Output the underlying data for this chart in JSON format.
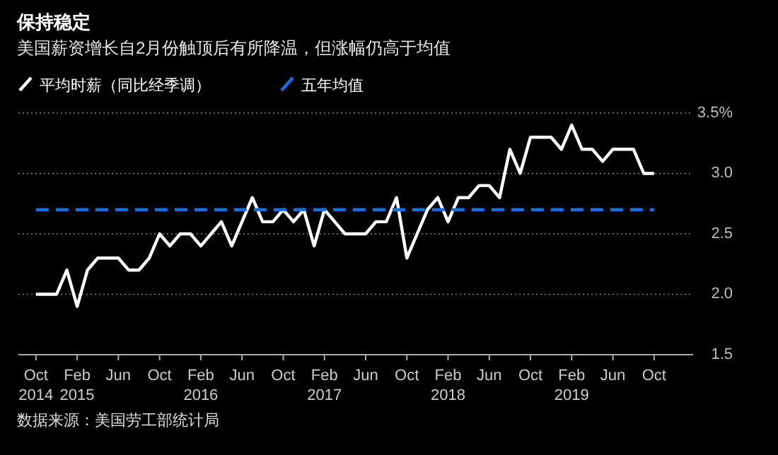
{
  "chart_data": {
    "type": "line",
    "title": "保持稳定",
    "subtitle": "美国薪资增长自2月份触顶后有所降温，但涨幅仍高于均值",
    "annotations": [
      "数据来源：美国劳工部统计局"
    ],
    "x": [
      "2014-10",
      "2014-11",
      "2014-12",
      "2015-01",
      "2015-02",
      "2015-03",
      "2015-04",
      "2015-05",
      "2015-06",
      "2015-07",
      "2015-08",
      "2015-09",
      "2015-10",
      "2015-11",
      "2015-12",
      "2016-01",
      "2016-02",
      "2016-03",
      "2016-04",
      "2016-05",
      "2016-06",
      "2016-07",
      "2016-08",
      "2016-09",
      "2016-10",
      "2016-11",
      "2016-12",
      "2017-01",
      "2017-02",
      "2017-03",
      "2017-04",
      "2017-05",
      "2017-06",
      "2017-07",
      "2017-08",
      "2017-09",
      "2017-10",
      "2017-11",
      "2017-12",
      "2018-01",
      "2018-02",
      "2018-03",
      "2018-04",
      "2018-05",
      "2018-06",
      "2018-07",
      "2018-08",
      "2018-09",
      "2018-10",
      "2018-11",
      "2018-12",
      "2019-01",
      "2019-02",
      "2019-03",
      "2019-04",
      "2019-05",
      "2019-06",
      "2019-07",
      "2019-08",
      "2019-09",
      "2019-10"
    ],
    "series": [
      {
        "name": "平均时薪（同比经季调）",
        "color": "#ffffff",
        "line_style": "solid",
        "values": [
          2.0,
          2.0,
          2.0,
          2.2,
          1.9,
          2.2,
          2.3,
          2.3,
          2.3,
          2.2,
          2.2,
          2.3,
          2.5,
          2.4,
          2.5,
          2.5,
          2.4,
          2.5,
          2.6,
          2.4,
          2.6,
          2.8,
          2.6,
          2.6,
          2.7,
          2.6,
          2.7,
          2.4,
          2.7,
          2.6,
          2.5,
          2.5,
          2.5,
          2.6,
          2.6,
          2.8,
          2.3,
          2.5,
          2.7,
          2.8,
          2.6,
          2.8,
          2.8,
          2.9,
          2.9,
          2.8,
          3.2,
          3.0,
          3.3,
          3.3,
          3.3,
          3.2,
          3.4,
          3.2,
          3.2,
          3.1,
          3.2,
          3.2,
          3.2,
          3.0,
          3.0
        ]
      },
      {
        "name": "五年均值",
        "color": "#1a6fe0",
        "line_style": "dashed",
        "values": [
          2.7,
          2.7,
          2.7,
          2.7,
          2.7,
          2.7,
          2.7,
          2.7,
          2.7,
          2.7,
          2.7,
          2.7,
          2.7,
          2.7,
          2.7,
          2.7,
          2.7,
          2.7,
          2.7,
          2.7,
          2.7,
          2.7,
          2.7,
          2.7,
          2.7,
          2.7,
          2.7,
          2.7,
          2.7,
          2.7,
          2.7,
          2.7,
          2.7,
          2.7,
          2.7,
          2.7,
          2.7,
          2.7,
          2.7,
          2.7,
          2.7,
          2.7,
          2.7,
          2.7,
          2.7,
          2.7,
          2.7,
          2.7,
          2.7,
          2.7,
          2.7,
          2.7,
          2.7,
          2.7,
          2.7,
          2.7,
          2.7,
          2.7,
          2.7,
          2.7,
          2.7
        ]
      }
    ],
    "xlim": [
      "2014-08-10",
      "2020-01-25"
    ],
    "xticks": [
      {
        "value": "2014-10",
        "label": "Oct\n2014"
      },
      {
        "value": "2015-02",
        "label": "Feb\n2015"
      },
      {
        "value": "2015-06",
        "label": "Jun"
      },
      {
        "value": "2015-10",
        "label": "Oct"
      },
      {
        "value": "2016-02",
        "label": "Feb\n2016"
      },
      {
        "value": "2016-06",
        "label": "Jun"
      },
      {
        "value": "2016-10",
        "label": "Oct"
      },
      {
        "value": "2017-02",
        "label": "Feb\n2017"
      },
      {
        "value": "2017-06",
        "label": "Jun"
      },
      {
        "value": "2017-10",
        "label": "Oct"
      },
      {
        "value": "2018-02",
        "label": "Feb\n2018"
      },
      {
        "value": "2018-06",
        "label": "Jun"
      },
      {
        "value": "2018-10",
        "label": "Oct"
      },
      {
        "value": "2019-02",
        "label": "Feb\n2019"
      },
      {
        "value": "2019-06",
        "label": "Jun"
      },
      {
        "value": "2019-10",
        "label": "Oct"
      }
    ],
    "ylim": [
      1.5,
      3.5
    ],
    "yticks": [
      1.5,
      {
        "value": 2,
        "label": "2.0"
      },
      2.5,
      {
        "value": 3,
        "label": "3.0"
      },
      {
        "value": 3.5,
        "label": "3.5%"
      }
    ],
    "grid": "y",
    "legend": "top left",
    "marker": "none"
  }
}
